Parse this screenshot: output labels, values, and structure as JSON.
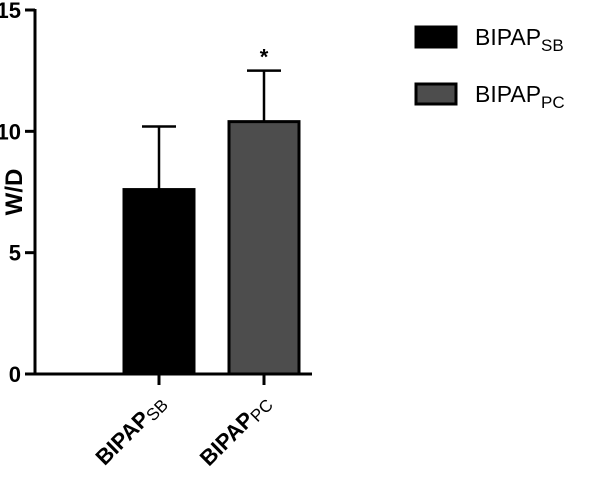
{
  "chart_data": {
    "type": "bar",
    "ylabel": "W/D",
    "ylim": [
      0,
      15
    ],
    "yticks": [
      0,
      5,
      10,
      15
    ],
    "grid": false,
    "legend_placement": "top-right",
    "categories": [
      {
        "main": "BIPAP",
        "sub": "SB"
      },
      {
        "main": "BIPAP",
        "sub": "PC"
      }
    ],
    "values": [
      7.6,
      10.4
    ],
    "error_upper": [
      10.2,
      12.5
    ],
    "annotations": [
      "",
      "*"
    ],
    "colors": [
      "#000000",
      "#4d4d4d"
    ],
    "legend": [
      {
        "main": "BIPAP",
        "sub": "SB",
        "color": "#000000"
      },
      {
        "main": "BIPAP",
        "sub": "PC",
        "color": "#4d4d4d"
      }
    ]
  }
}
